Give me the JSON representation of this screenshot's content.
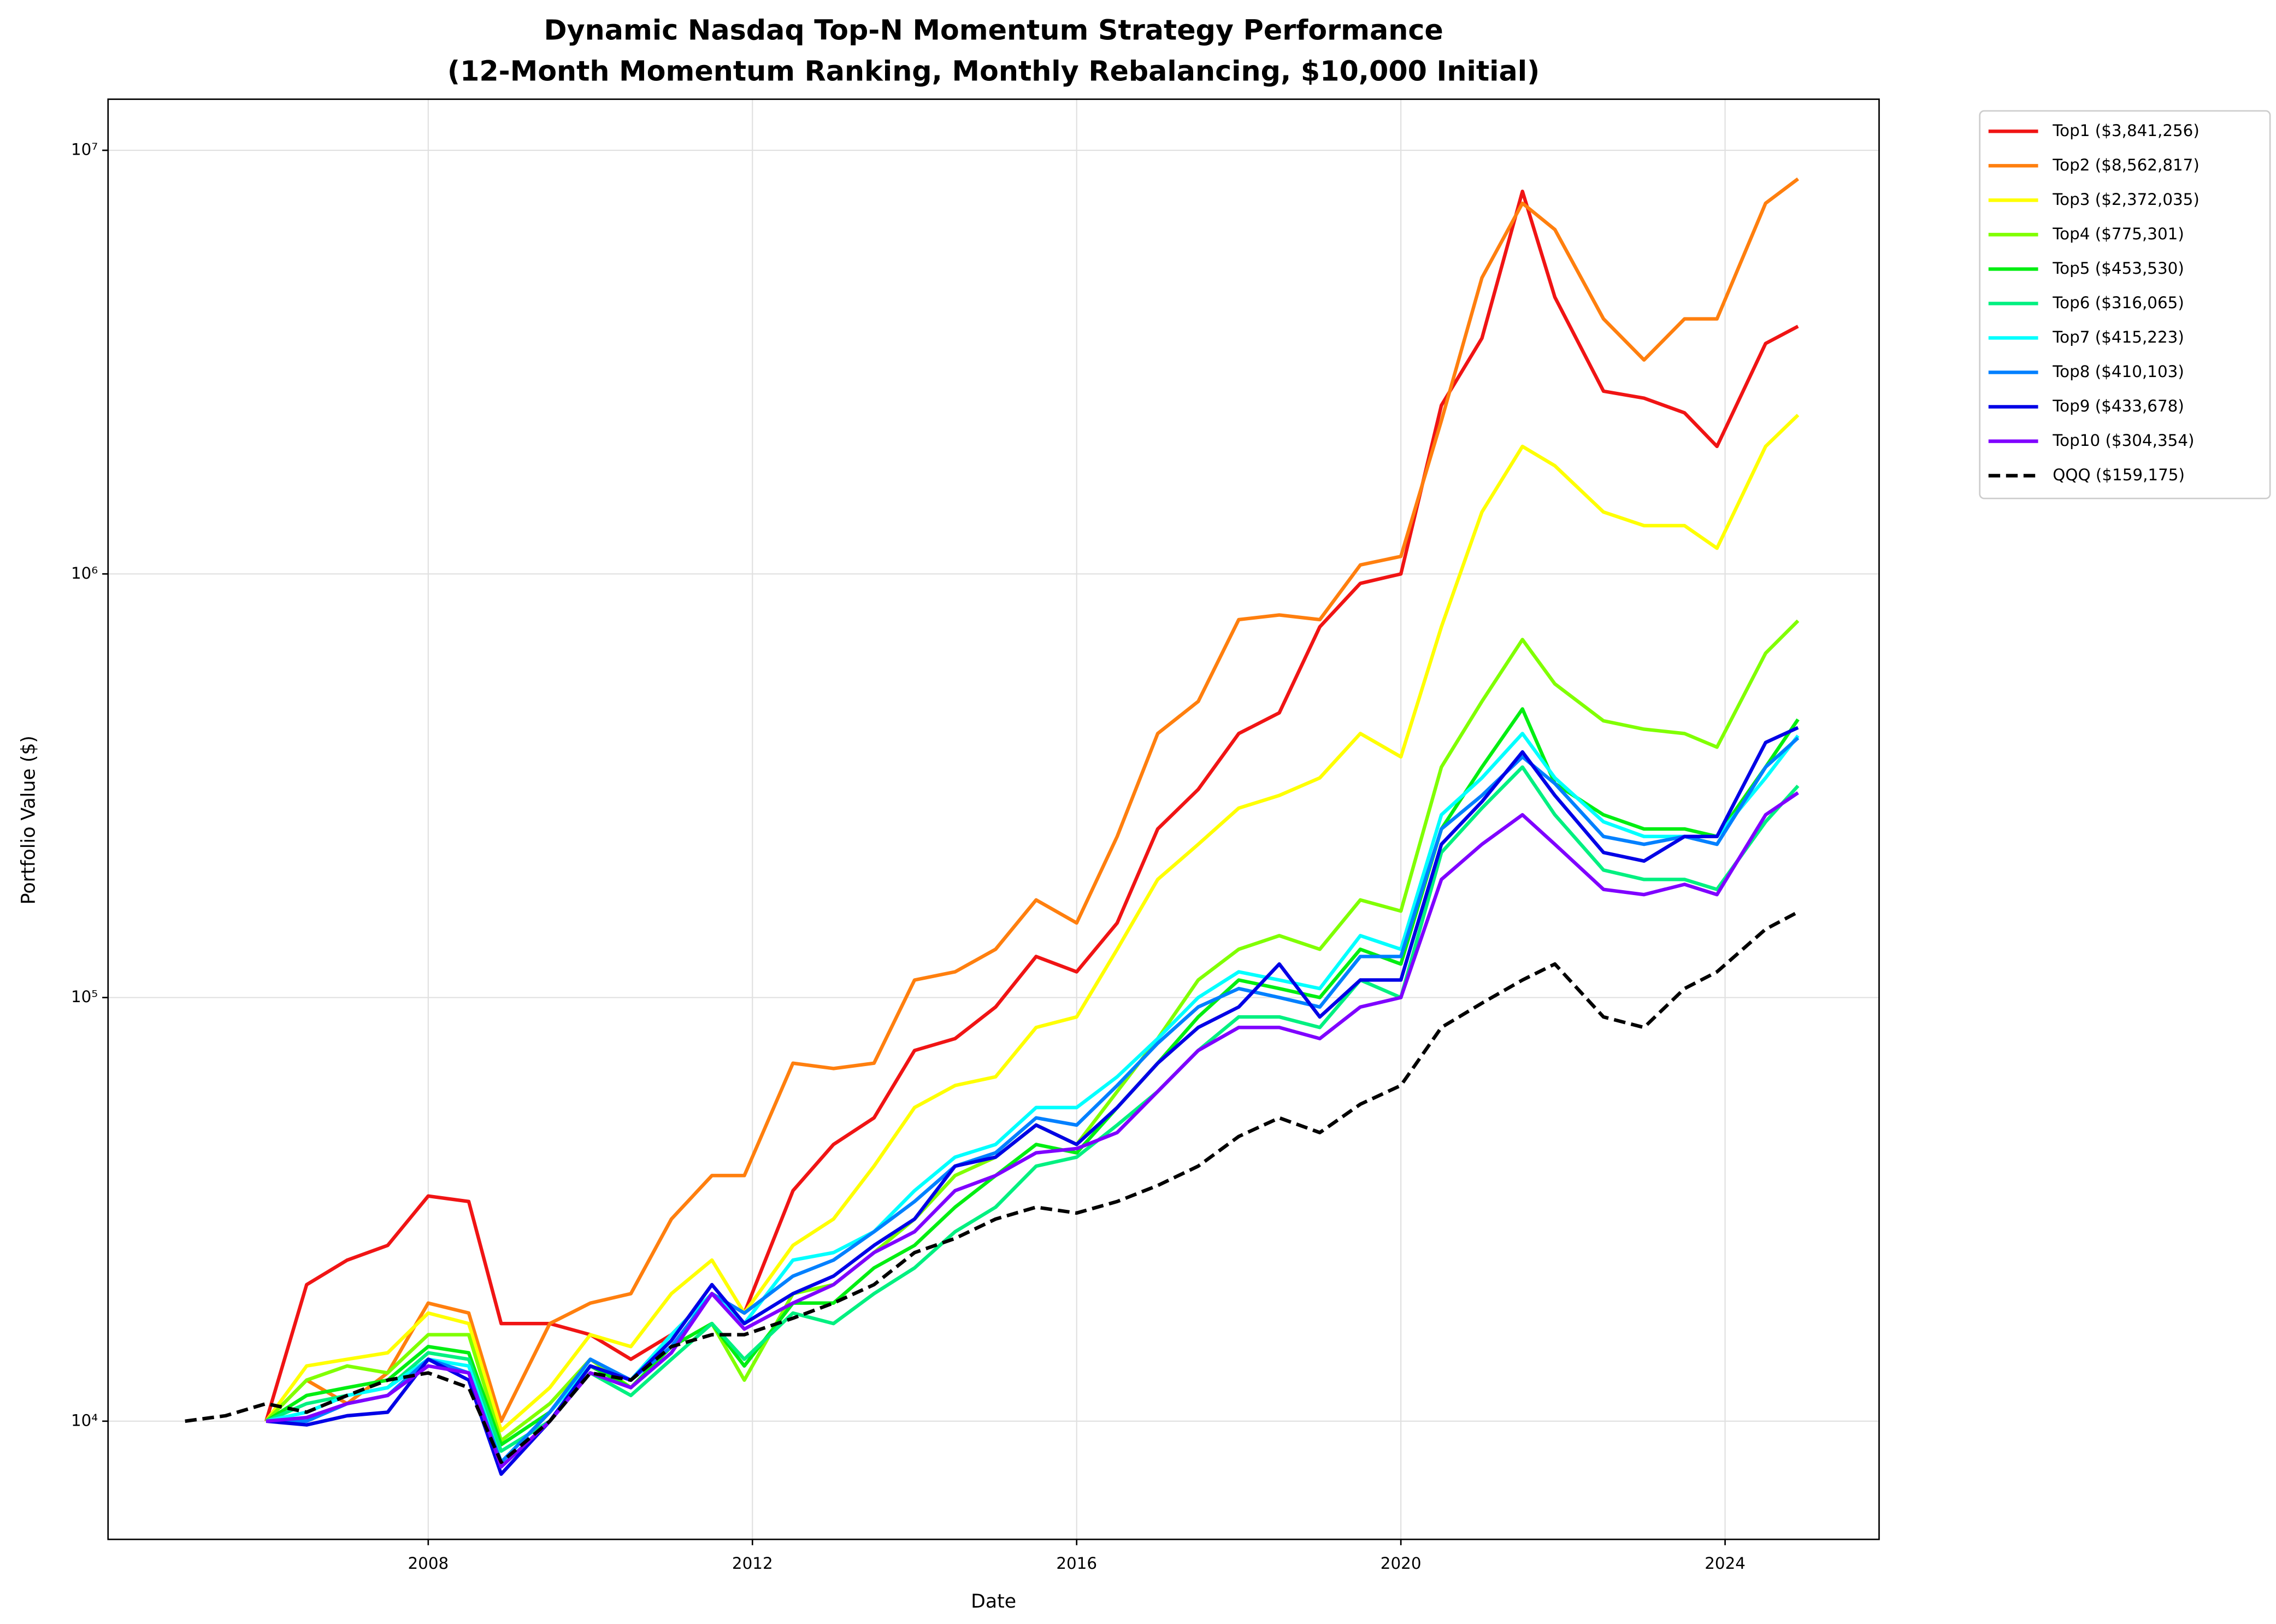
{
  "chart_data": {
    "type": "line",
    "title": "Dynamic Nasdaq Top-N Momentum Strategy Performance",
    "subtitle": "(12-Month Momentum Ranking, Monthly Rebalancing, $10,000 Initial)",
    "x_label": "Date",
    "y_label": "Portfolio Value ($)",
    "log_y": true,
    "grid": true,
    "legend": "outside upper right",
    "xlim": [
      2004.05,
      2025.9
    ],
    "xticks": [
      2008,
      2012,
      2016,
      2020,
      2024
    ],
    "ylim": [
      5260,
      13200000
    ],
    "yticks": [
      {
        "value": 10000,
        "label": "10⁴"
      },
      {
        "value": 100000,
        "label": "10⁵"
      },
      {
        "value": 1000000,
        "label": "10⁶"
      },
      {
        "value": 10000000,
        "label": "10⁷"
      }
    ],
    "x": [
      2005.0,
      2005.5,
      2006.0,
      2006.5,
      2007.0,
      2007.5,
      2008.0,
      2008.5,
      2008.9,
      2009.5,
      2010.0,
      2010.5,
      2011.0,
      2011.5,
      2011.9,
      2012.5,
      2013.0,
      2013.5,
      2014.0,
      2014.5,
      2015.0,
      2015.5,
      2016.0,
      2016.5,
      2017.0,
      2017.5,
      2018.0,
      2018.5,
      2019.0,
      2019.5,
      2020.0,
      2020.5,
      2021.0,
      2021.5,
      2021.9,
      2022.5,
      2023.0,
      2023.5,
      2023.9,
      2024.5,
      2024.9
    ],
    "series": [
      {
        "name": "Top1 ($3,841,256)",
        "color": "#f01414",
        "linestyle": "solid",
        "values": [
          null,
          null,
          10000,
          21000,
          24000,
          26000,
          34000,
          33000,
          17000,
          17000,
          16000,
          14000,
          16000,
          20000,
          18000,
          35000,
          45000,
          52000,
          75000,
          80000,
          95000,
          125000,
          115000,
          150000,
          250000,
          310000,
          420000,
          470000,
          750000,
          950000,
          1000000,
          2500000,
          3600000,
          8000000,
          4500000,
          2700000,
          2600000,
          2400000,
          2000000,
          3500000,
          3841256
        ]
      },
      {
        "name": "Top2 ($8,562,817)",
        "color": "#ff7f0e",
        "linestyle": "solid",
        "values": [
          null,
          null,
          10000,
          12500,
          11000,
          13000,
          19000,
          18000,
          10000,
          17000,
          19000,
          20000,
          30000,
          38000,
          38000,
          70000,
          68000,
          70000,
          110000,
          115000,
          130000,
          170000,
          150000,
          240000,
          420000,
          500000,
          780000,
          800000,
          780000,
          1050000,
          1100000,
          2300000,
          5000000,
          7500000,
          6500000,
          4000000,
          3200000,
          4000000,
          4000000,
          7500000,
          8562817
        ]
      },
      {
        "name": "Top3 ($2,372,035)",
        "color": "#ffff00",
        "linestyle": "solid",
        "values": [
          null,
          null,
          10000,
          13500,
          14000,
          14500,
          18000,
          17000,
          9500,
          12000,
          16000,
          15000,
          20000,
          24000,
          18000,
          26000,
          30000,
          40000,
          55000,
          62000,
          65000,
          85000,
          90000,
          130000,
          190000,
          230000,
          280000,
          300000,
          330000,
          420000,
          370000,
          750000,
          1400000,
          2000000,
          1800000,
          1400000,
          1300000,
          1300000,
          1150000,
          2000000,
          2372035
        ]
      },
      {
        "name": "Top4 ($775,301)",
        "color": "#80ff00",
        "linestyle": "solid",
        "values": [
          null,
          null,
          10000,
          12500,
          13500,
          13000,
          16000,
          16000,
          9000,
          11000,
          14000,
          12000,
          15000,
          17000,
          12500,
          20000,
          21000,
          25000,
          30000,
          38000,
          42000,
          50000,
          45000,
          60000,
          80000,
          110000,
          130000,
          140000,
          130000,
          170000,
          160000,
          350000,
          500000,
          700000,
          550000,
          450000,
          430000,
          420000,
          390000,
          650000,
          775301
        ]
      },
      {
        "name": "Top5 ($453,530)",
        "color": "#00ee11",
        "linestyle": "solid",
        "values": [
          null,
          null,
          10000,
          11500,
          12000,
          12500,
          15000,
          14500,
          8800,
          10500,
          13500,
          12000,
          15000,
          17000,
          13500,
          19000,
          19000,
          23000,
          26000,
          32000,
          38000,
          45000,
          43000,
          55000,
          70000,
          90000,
          110000,
          105000,
          100000,
          130000,
          120000,
          250000,
          350000,
          480000,
          320000,
          270000,
          250000,
          250000,
          240000,
          350000,
          453530
        ]
      },
      {
        "name": "Top6 ($316,065)",
        "color": "#00f080",
        "linestyle": "solid",
        "values": [
          null,
          null,
          10000,
          11000,
          11500,
          12000,
          14500,
          14000,
          8500,
          10000,
          13000,
          11500,
          14000,
          17000,
          14000,
          18000,
          17000,
          20000,
          23000,
          28000,
          32000,
          40000,
          42000,
          50000,
          60000,
          75000,
          90000,
          90000,
          85000,
          110000,
          100000,
          220000,
          280000,
          350000,
          270000,
          200000,
          190000,
          190000,
          180000,
          260000,
          316065
        ]
      },
      {
        "name": "Top7 ($415,223)",
        "color": "#00ffff",
        "linestyle": "solid",
        "values": [
          null,
          null,
          10000,
          10500,
          11500,
          12000,
          14000,
          13500,
          8000,
          10500,
          13500,
          12500,
          16000,
          20000,
          17000,
          24000,
          25000,
          28000,
          35000,
          42000,
          45000,
          55000,
          55000,
          65000,
          80000,
          100000,
          115000,
          110000,
          105000,
          140000,
          130000,
          270000,
          330000,
          420000,
          330000,
          260000,
          240000,
          240000,
          240000,
          330000,
          415223
        ]
      },
      {
        "name": "Top8 ($410,103)",
        "color": "#0080ff",
        "linestyle": "solid",
        "values": [
          null,
          null,
          10000,
          10000,
          11000,
          11500,
          14000,
          13000,
          8000,
          10500,
          14000,
          12500,
          15000,
          20000,
          18000,
          22000,
          24000,
          28000,
          33000,
          40000,
          43000,
          52000,
          50000,
          62000,
          78000,
          95000,
          105000,
          100000,
          95000,
          125000,
          125000,
          250000,
          300000,
          370000,
          320000,
          240000,
          230000,
          240000,
          230000,
          350000,
          410103
        ]
      },
      {
        "name": "Top9 ($433,678)",
        "color": "#0000e6",
        "linestyle": "solid",
        "values": [
          null,
          null,
          10000,
          9800,
          10300,
          10500,
          14000,
          12500,
          7500,
          10000,
          13500,
          12500,
          15500,
          21000,
          17000,
          20000,
          22000,
          26000,
          30000,
          40000,
          42000,
          50000,
          45000,
          55000,
          70000,
          85000,
          95000,
          120000,
          90000,
          110000,
          110000,
          230000,
          290000,
          380000,
          300000,
          220000,
          210000,
          240000,
          240000,
          400000,
          433678
        ]
      },
      {
        "name": "Top10 ($304,354)",
        "color": "#7f00ff",
        "linestyle": "solid",
        "values": [
          null,
          null,
          10000,
          10200,
          11000,
          11500,
          13500,
          13000,
          7800,
          10000,
          13000,
          12000,
          14500,
          20000,
          16500,
          19000,
          21000,
          25000,
          28000,
          35000,
          38000,
          43000,
          44000,
          48000,
          60000,
          75000,
          85000,
          85000,
          80000,
          95000,
          100000,
          190000,
          230000,
          270000,
          230000,
          180000,
          175000,
          185000,
          175000,
          270000,
          304354
        ]
      },
      {
        "name": "QQQ ($159,175)",
        "color": "#000000",
        "linestyle": "dashed",
        "values": [
          10000,
          10300,
          11000,
          10500,
          11500,
          12500,
          13000,
          12000,
          8000,
          10000,
          13000,
          12500,
          15000,
          16000,
          16000,
          17500,
          19000,
          21000,
          25000,
          27000,
          30000,
          32000,
          31000,
          33000,
          36000,
          40000,
          47000,
          52000,
          48000,
          56000,
          62000,
          85000,
          97000,
          110000,
          120000,
          90000,
          85000,
          105000,
          115000,
          145000,
          159175
        ]
      }
    ]
  }
}
